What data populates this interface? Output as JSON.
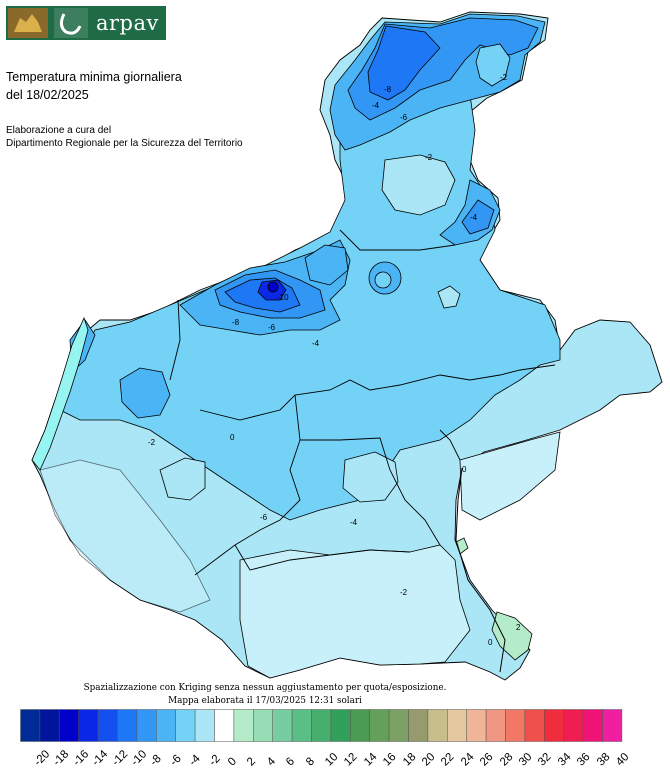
{
  "logo": {
    "text": "arpav",
    "bg": "#1f6b45"
  },
  "title": {
    "line1": "Temperatura minima giornaliera",
    "line2": "del 18/02/2025"
  },
  "credit": {
    "line1": "Elaborazione a cura del",
    "line2": "Dipartimento Regionale per la Sicurezza del Territorio"
  },
  "footnote": {
    "line1": "Spazializzazione con Kriging senza nessun aggiustamento per quota/esposizione.",
    "line2": "Mappa elaborata il 17/03/2025 12:31 solari"
  },
  "legend": {
    "labels": [
      "-20",
      "-18",
      "-16",
      "-14",
      "-12",
      "-10",
      "-8",
      "-6",
      "-4",
      "-2",
      "0",
      "2",
      "4",
      "6",
      "8",
      "10",
      "12",
      "14",
      "16",
      "18",
      "20",
      "22",
      "24",
      "26",
      "28",
      "30",
      "32",
      "34",
      "36",
      "38",
      "40"
    ],
    "colors": [
      "#002a96",
      "#00149c",
      "#0000c8",
      "#0a28e6",
      "#1450f0",
      "#1e78f5",
      "#3296f5",
      "#4bb4f5",
      "#73d2f5",
      "#aae6f5",
      "#ffffff",
      "#b4ebc8",
      "#96dcb4",
      "#78cda0",
      "#5abe87",
      "#46af6e",
      "#32a05a",
      "#4b9b55",
      "#64a05a",
      "#7da064",
      "#969b6e",
      "#c8be8c",
      "#e6c8a0",
      "#f0b496",
      "#f09682",
      "#f07864",
      "#f0504b",
      "#f02d3c",
      "#f01e50",
      "#f01478",
      "#f01ea0"
    ]
  },
  "map": {
    "colors": {
      "c_m10": "#1e78f5",
      "c_m8": "#3296f5",
      "c_m6": "#4bb4f5",
      "c_m4": "#73d2f5",
      "c_m2": "#aae6f5",
      "c_0": "#c8f0fa",
      "c_pos": "#b4ebc8",
      "c_cyan": "#96f5f0"
    },
    "contour_labels": [
      "-8",
      "-6",
      "-4",
      "-2",
      "-2",
      "-4",
      "-6",
      "-8",
      "-10",
      "-4",
      "-2",
      "0",
      "0",
      "-2",
      "-4",
      "-6",
      "0",
      "2"
    ]
  }
}
